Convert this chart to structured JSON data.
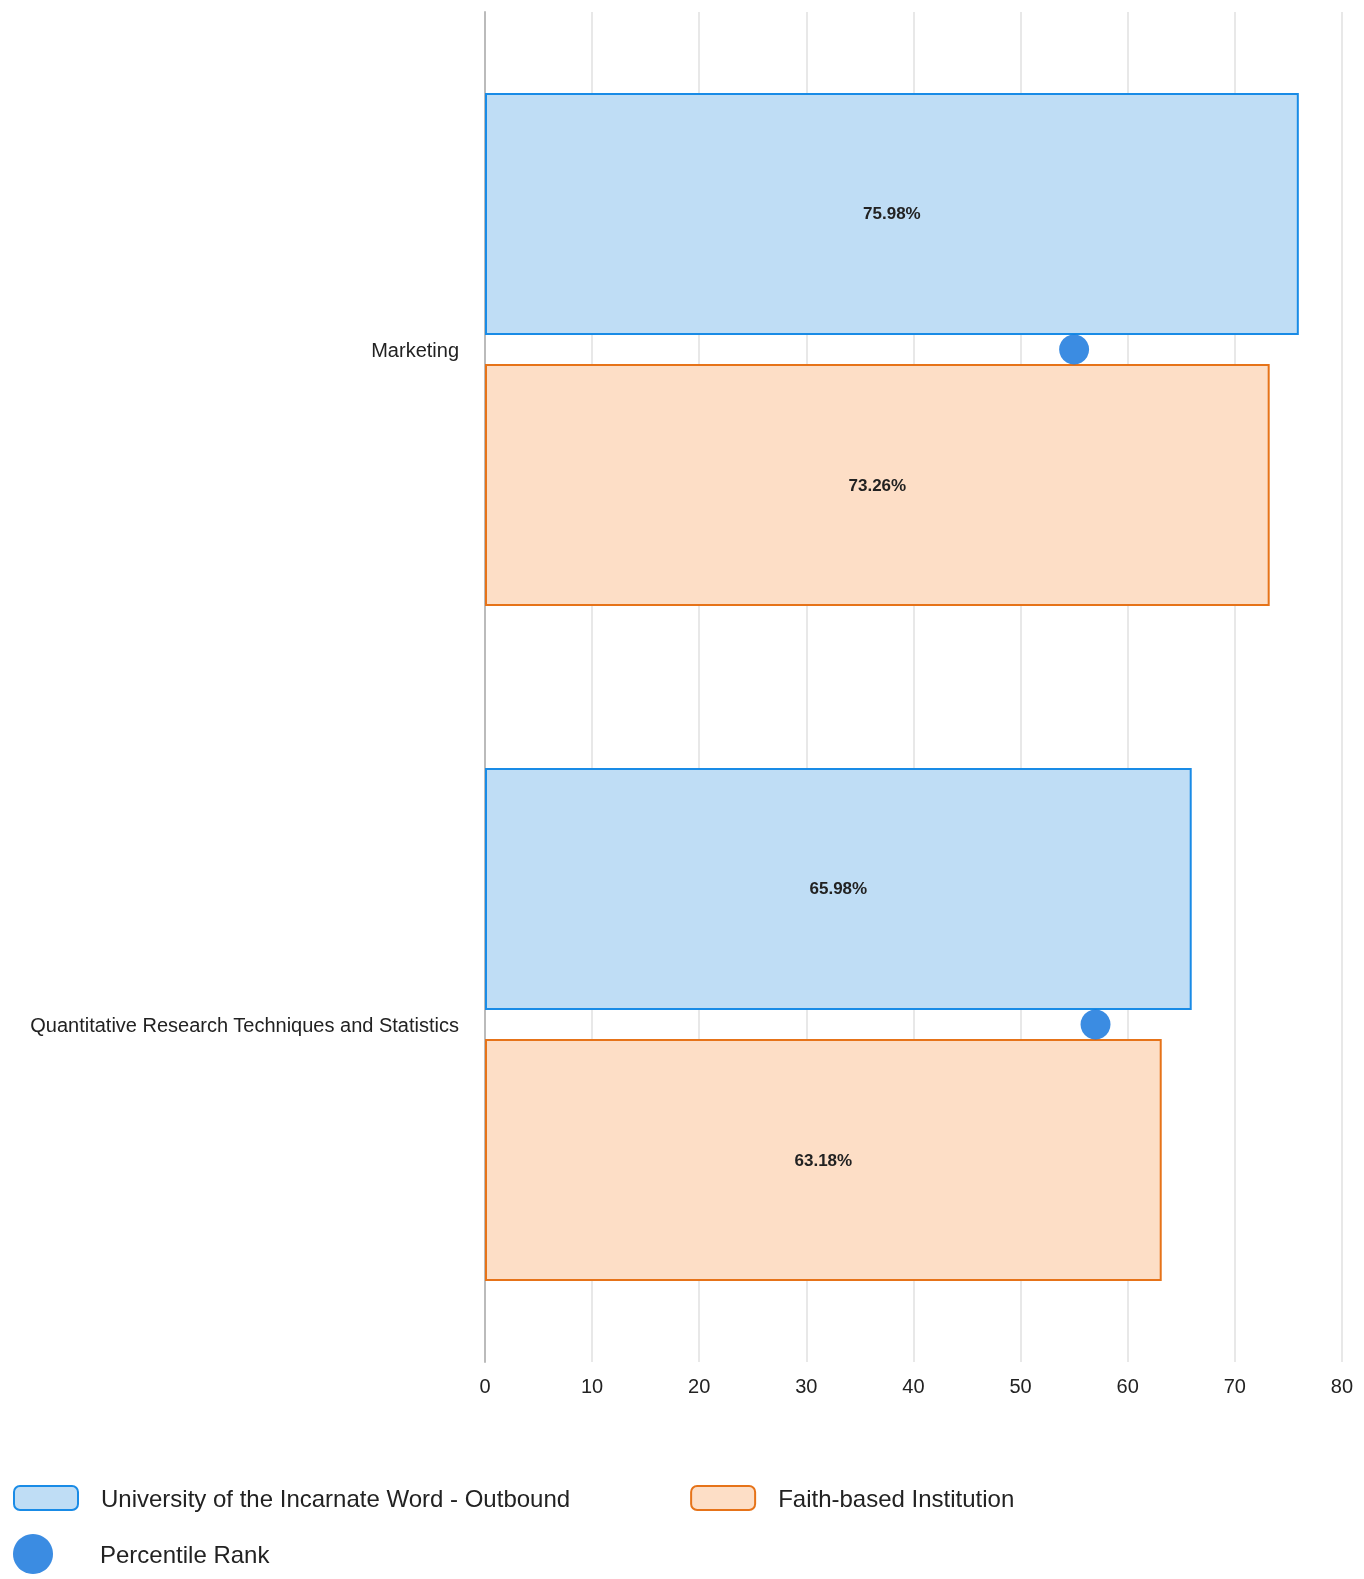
{
  "chart_data": {
    "type": "bar",
    "orientation": "horizontal",
    "categories": [
      "Marketing",
      "Quantitative Research Techniques and Statistics"
    ],
    "series": [
      {
        "name": "University of the Incarnate Word - Outbound",
        "color": "#bfddf5",
        "values": [
          75.98,
          65.98
        ],
        "value_labels": [
          "75.98%",
          "65.98%"
        ]
      },
      {
        "name": "Faith-based Institution",
        "color": "#fddec6",
        "values": [
          73.26,
          63.18
        ],
        "value_labels": [
          "73.26%",
          "63.18%"
        ]
      },
      {
        "name": "Percentile Rank",
        "type": "scatter",
        "color": "#0a6fdb",
        "values": [
          55,
          57
        ]
      }
    ],
    "xlim": [
      0,
      80
    ],
    "xticks": [
      0,
      10,
      20,
      30,
      40,
      50,
      60,
      70,
      80
    ],
    "grid": "x",
    "legend": "bottom",
    "marker": "circle"
  }
}
